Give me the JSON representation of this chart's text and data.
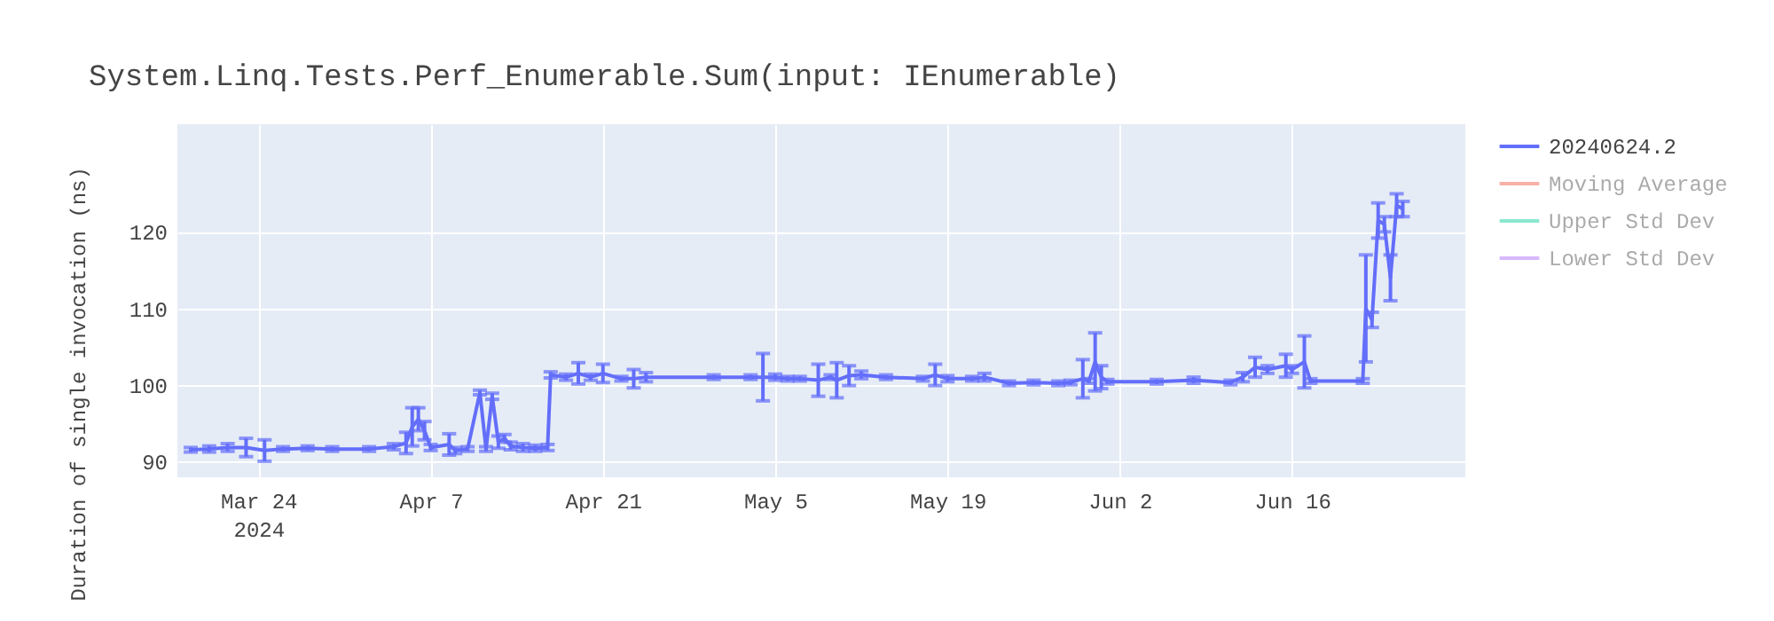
{
  "chart_data": {
    "type": "line",
    "title": "System.Linq.Tests.Perf_Enumerable.Sum(input: IEnumerable)",
    "ylabel": "Duration of single invocation (ns)",
    "xlim": [
      "2024-03-17T10:00",
      "2024-06-30T02:00"
    ],
    "xticks": [
      {
        "value": "2024-03-24",
        "label": "Mar 24\n2024"
      },
      {
        "value": "2024-04-07",
        "label": "Apr 7"
      },
      {
        "value": "2024-04-21",
        "label": "Apr 21"
      },
      {
        "value": "2024-05-05",
        "label": "May 5"
      },
      {
        "value": "2024-05-19",
        "label": "May 19"
      },
      {
        "value": "2024-06-02",
        "label": "Jun 2"
      },
      {
        "value": "2024-06-16",
        "label": "Jun 16"
      }
    ],
    "ylim": [
      87.9,
      134.1
    ],
    "yticks": [
      90,
      100,
      110,
      120
    ],
    "grid": true,
    "legend": "top right",
    "marker": "none",
    "line_style": "solid",
    "series": [
      {
        "name": "20240624.2",
        "color": "#636efa",
        "x": [
          "2024-03-18T12:00",
          "2024-03-20",
          "2024-03-21T12:00",
          "2024-03-23",
          "2024-03-24T12:00",
          "2024-03-26",
          "2024-03-28",
          "2024-03-30",
          "2024-04-02",
          "2024-04-04",
          "2024-04-05",
          "2024-04-05T12:00",
          "2024-04-06",
          "2024-04-06T12:00",
          "2024-04-07",
          "2024-04-08T12:00",
          "2024-04-09",
          "2024-04-10",
          "2024-04-11",
          "2024-04-11T12:00",
          "2024-04-12",
          "2024-04-12T12:00",
          "2024-04-13",
          "2024-04-13T12:00",
          "2024-04-14T12:00",
          "2024-04-15T12:00",
          "2024-04-16T12:00",
          "2024-04-16T18:00",
          "2024-04-18",
          "2024-04-19",
          "2024-04-20",
          "2024-04-21",
          "2024-04-22T12:00",
          "2024-04-23T12:00",
          "2024-04-24T12:00",
          "2024-04-30",
          "2024-05-03",
          "2024-05-04",
          "2024-05-05",
          "2024-05-06",
          "2024-05-07",
          "2024-05-08T12:00",
          "2024-05-09T12:00",
          "2024-05-10",
          "2024-05-11",
          "2024-05-12",
          "2024-05-14",
          "2024-05-17",
          "2024-05-18",
          "2024-05-19",
          "2024-05-21",
          "2024-05-22",
          "2024-05-24",
          "2024-05-26",
          "2024-05-28",
          "2024-05-29",
          "2024-05-30",
          "2024-05-30T12:00",
          "2024-05-31",
          "2024-05-31T12:00",
          "2024-06-01",
          "2024-06-05",
          "2024-06-08",
          "2024-06-11",
          "2024-06-12",
          "2024-06-13",
          "2024-06-14",
          "2024-06-15T12:00",
          "2024-06-16",
          "2024-06-17",
          "2024-06-17T12:00",
          "2024-06-21T18:00",
          "2024-06-22",
          "2024-06-22T12:00",
          "2024-06-23",
          "2024-06-23T12:00",
          "2024-06-24",
          "2024-06-24T12:00",
          "2024-06-25"
        ],
        "values": [
          91.5,
          91.6,
          91.8,
          91.8,
          91.4,
          91.6,
          91.7,
          91.6,
          91.6,
          91.9,
          92.4,
          94.5,
          95.5,
          94,
          91.8,
          92.2,
          91.4,
          91.6,
          99,
          91.6,
          98.5,
          92.5,
          93,
          92,
          91.8,
          91.7,
          91.8,
          101.3,
          101,
          101.5,
          101,
          101.5,
          100.8,
          100.8,
          101,
          101,
          101,
          101,
          101,
          100.8,
          100.8,
          100.6,
          101,
          100.6,
          101.2,
          101.3,
          101,
          100.8,
          101.3,
          100.8,
          100.8,
          101,
          100.2,
          100.3,
          100.2,
          100.3,
          100.8,
          100.5,
          103,
          101,
          100.4,
          100.4,
          100.6,
          100.3,
          101,
          102.3,
          102,
          102.5,
          102,
          103,
          100.5,
          100.5,
          110,
          108.5,
          121.5,
          121,
          114,
          123.5,
          123
        ],
        "errors": [
          0.3,
          0.4,
          0.5,
          1.2,
          1.4,
          0.3,
          0.3,
          0.3,
          0.3,
          0.4,
          1.4,
          2.5,
          1.5,
          1.2,
          0.4,
          1.4,
          0.4,
          0.3,
          0.3,
          0.3,
          0.4,
          0.8,
          0.5,
          0.5,
          0.5,
          0.4,
          0.4,
          0.4,
          0.4,
          1.4,
          0.4,
          1.2,
          0.3,
          1.2,
          0.6,
          0.3,
          0.3,
          3.1,
          0.4,
          0.3,
          0.3,
          2.1,
          0.3,
          2.3,
          1.3,
          0.5,
          0.3,
          0.3,
          1.4,
          0.4,
          0.3,
          0.5,
          0.3,
          0.3,
          0.3,
          0.3,
          2.5,
          0.3,
          3.8,
          1.5,
          0.3,
          0.3,
          0.4,
          0.3,
          0.6,
          1.3,
          0.5,
          1.5,
          0.5,
          3.4,
          0.3,
          0.3,
          7,
          1,
          2.3,
          1,
          3,
          1.5,
          1
        ]
      },
      {
        "name": "Moving Average",
        "color": "#ef553b"
      },
      {
        "name": "Upper Std Dev",
        "color": "#00cc96"
      },
      {
        "name": "Lower Std Dev",
        "color": "#ab63fa"
      }
    ]
  }
}
